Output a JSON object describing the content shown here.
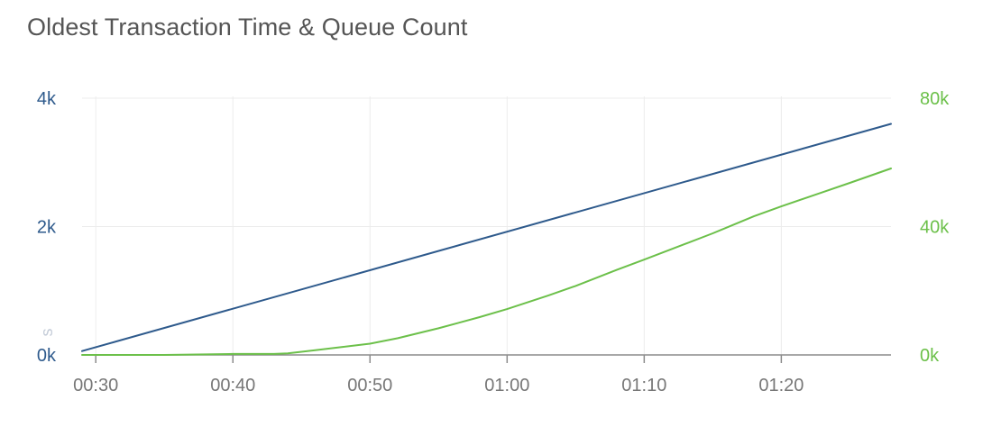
{
  "chart_data": {
    "type": "line",
    "title": "Oldest Transaction Time & Queue Count",
    "x_ticks": [
      "00:30",
      "00:40",
      "00:50",
      "01:00",
      "01:10",
      "01:20"
    ],
    "x_tick_minutes": [
      30,
      40,
      50,
      60,
      70,
      80
    ],
    "xlim_minutes": [
      29,
      88
    ],
    "left_axis": {
      "label": "s",
      "ylim": [
        0,
        4000
      ],
      "ticks": [
        "0k",
        "2k",
        "4k"
      ],
      "tick_values": [
        0,
        2000,
        4000
      ],
      "color": "#2e5a8c"
    },
    "right_axis": {
      "ylim": [
        0,
        80000
      ],
      "ticks": [
        "0k",
        "40k",
        "80k"
      ],
      "tick_values": [
        0,
        40000,
        80000
      ],
      "color": "#6cc04a"
    },
    "series": [
      {
        "axis": "left",
        "color": "#2e5a8c",
        "x_minutes": [
          29,
          88
        ],
        "values": [
          60,
          3600
        ]
      },
      {
        "axis": "right",
        "color": "#6cc04a",
        "x_minutes": [
          29,
          35,
          40,
          43,
          44,
          46,
          48,
          50,
          52,
          55,
          58,
          60,
          63,
          65,
          68,
          70,
          73,
          75,
          78,
          80,
          83,
          85,
          88
        ],
        "values": [
          0,
          0,
          300,
          300,
          500,
          1500,
          2500,
          3500,
          5200,
          8300,
          11800,
          14300,
          18500,
          21500,
          26500,
          29700,
          34600,
          37900,
          43200,
          46300,
          50700,
          53600,
          58100
        ]
      }
    ],
    "grid": true
  }
}
